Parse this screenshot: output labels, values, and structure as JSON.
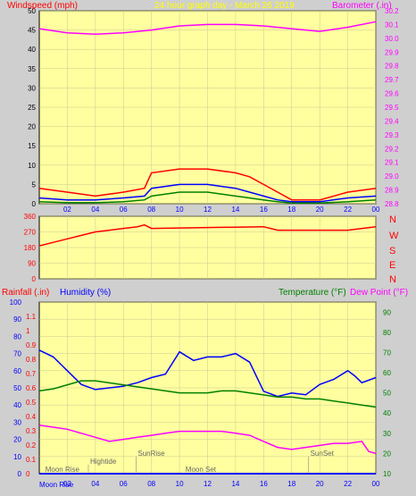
{
  "chart_data": [
    {
      "type": "line",
      "title": "24 hour graph day - March 26 2019",
      "left_axis_label": "Windspeed (mph)",
      "right_axis_label": "Barometer (.in)",
      "x_ticks": [
        "02",
        "04",
        "06",
        "08",
        "10",
        "12",
        "14",
        "16",
        "18",
        "20",
        "22",
        "00"
      ],
      "left_ylim": [
        0,
        50
      ],
      "left_ticks": [
        "0",
        "5",
        "10",
        "15",
        "20",
        "25",
        "30",
        "35",
        "40",
        "45",
        "50"
      ],
      "right_ylim": [
        28.8,
        30.2
      ],
      "right_ticks": [
        "28.8",
        "28.9",
        "29.0",
        "29.1",
        "29.2",
        "29.3",
        "29.4",
        "29.5",
        "29.6",
        "29.7",
        "29.8",
        "29.9",
        "30.0",
        "30.1",
        "30.2"
      ],
      "series": [
        {
          "color": "#ff00ff",
          "axis": "right",
          "x": [
            0,
            2,
            4,
            6,
            8,
            10,
            12,
            14,
            16,
            18,
            20,
            22,
            24
          ],
          "values": [
            30.07,
            30.04,
            30.03,
            30.04,
            30.06,
            30.09,
            30.1,
            30.1,
            30.09,
            30.07,
            30.05,
            30.08,
            30.12
          ]
        },
        {
          "color": "#ff0000",
          "axis": "left",
          "x": [
            0,
            2,
            4,
            6,
            7.5,
            8,
            10,
            12,
            14,
            15,
            16,
            17,
            18,
            20,
            22,
            24
          ],
          "values": [
            4,
            3,
            2,
            3,
            4,
            8,
            9,
            9,
            8,
            7,
            5,
            3,
            1,
            1,
            3,
            4
          ]
        },
        {
          "color": "#0000ff",
          "axis": "left",
          "x": [
            0,
            2,
            4,
            6,
            7.5,
            8,
            10,
            12,
            14,
            15,
            16,
            17,
            18,
            20,
            22,
            24
          ],
          "values": [
            1.5,
            1,
            1,
            1.5,
            2,
            4,
            5,
            5,
            4,
            3,
            2,
            1,
            0.5,
            0.5,
            1.5,
            2
          ]
        },
        {
          "color": "#008000",
          "axis": "left",
          "x": [
            0,
            2,
            4,
            6,
            7.5,
            8,
            10,
            12,
            14,
            15,
            16,
            17,
            18,
            20,
            22,
            24
          ],
          "values": [
            0.5,
            0.3,
            0.3,
            0.5,
            1,
            2,
            3,
            3,
            2,
            1.5,
            1,
            0.5,
            0.2,
            0.2,
            0.5,
            1
          ]
        }
      ]
    },
    {
      "type": "line",
      "directions": [
        "N",
        "W",
        "S",
        "E",
        "N"
      ],
      "ylim": [
        0,
        360
      ],
      "y_ticks": [
        "0",
        "90",
        "180",
        "270",
        "360"
      ],
      "x_ticks": [
        "02",
        "04",
        "06",
        "08",
        "10",
        "12",
        "14",
        "16",
        "18",
        "20",
        "22",
        "00"
      ],
      "series": [
        {
          "color": "#ff0000",
          "x": [
            0,
            1,
            2,
            3,
            4,
            5,
            6,
            7,
            7.5,
            8,
            16,
            16.5,
            17,
            22,
            24
          ],
          "values": [
            190,
            210,
            230,
            250,
            270,
            280,
            290,
            300,
            310,
            290,
            300,
            290,
            280,
            280,
            300
          ]
        }
      ]
    },
    {
      "type": "line",
      "left_label_1": "Rainfall (.in)",
      "left_label_2": "Humidity (%)",
      "right_label_1": "Temperature (°F)",
      "right_label_2": "Dew Point (°F)",
      "x_ticks": [
        "02",
        "04",
        "06",
        "08",
        "10",
        "12",
        "14",
        "16",
        "18",
        "20",
        "22",
        "00"
      ],
      "humidity_ylim": [
        0,
        100
      ],
      "humidity_ticks": [
        "0",
        "10",
        "20",
        "30",
        "40",
        "50",
        "60",
        "70",
        "80",
        "90",
        "100"
      ],
      "rain_ylim": [
        0,
        1.2
      ],
      "rain_ticks": [
        "0",
        "0.1",
        "0.2",
        "0.3",
        "0.4",
        "0.5",
        "0.6",
        "0.7",
        "0.8",
        "0.9",
        "1",
        "1.1"
      ],
      "temp_ylim": [
        10,
        95
      ],
      "temp_ticks": [
        "10",
        "20",
        "30",
        "40",
        "50",
        "60",
        "70",
        "80",
        "90"
      ],
      "events": [
        {
          "label": "Moon Rise",
          "x": 0.3,
          "row": 0
        },
        {
          "label": "Hightide",
          "x": 3.5,
          "row": 1
        },
        {
          "label": "SunRise",
          "x": 6.9,
          "row": 2
        },
        {
          "label": "Moon Set",
          "x": 10.3,
          "row": 0
        },
        {
          "label": "SunSet",
          "x": 19.2,
          "row": 2
        }
      ],
      "bottom_label": "Moon Rise",
      "series": [
        {
          "color": "#0000ff",
          "axis": "humidity",
          "x": [
            0,
            1,
            2,
            3,
            4,
            5,
            6,
            7,
            8,
            9,
            10,
            11,
            12,
            13,
            14,
            15,
            16,
            17,
            18,
            19,
            20,
            21,
            22,
            22.5,
            23,
            24
          ],
          "values": [
            72,
            68,
            60,
            52,
            49,
            50,
            51,
            53,
            56,
            58,
            71,
            66,
            68,
            68,
            70,
            65,
            48,
            45,
            47,
            46,
            52,
            55,
            60,
            57,
            53,
            56
          ]
        },
        {
          "color": "#008000",
          "axis": "temp",
          "x": [
            0,
            1,
            2,
            3,
            4,
            5,
            6,
            7,
            8,
            9,
            10,
            11,
            12,
            13,
            14,
            15,
            16,
            17,
            18,
            19,
            20,
            21,
            22,
            23,
            24
          ],
          "values": [
            51,
            52,
            54,
            56,
            56,
            55,
            54,
            53,
            52,
            51,
            50,
            50,
            50,
            51,
            51,
            50,
            49,
            48,
            48,
            47,
            47,
            46,
            45,
            44,
            43
          ]
        },
        {
          "color": "#ff00ff",
          "axis": "temp",
          "x": [
            0,
            1,
            2,
            3,
            4,
            5,
            6,
            7,
            8,
            9,
            10,
            11,
            12,
            13,
            14,
            15,
            16,
            17,
            18,
            19,
            20,
            21,
            22,
            23,
            23.5,
            24
          ],
          "values": [
            34,
            33,
            32,
            30,
            28,
            26,
            27,
            28,
            29,
            30,
            31,
            31,
            31,
            31,
            30,
            29,
            26,
            23,
            22,
            23,
            24,
            25,
            25,
            26,
            21,
            20
          ]
        },
        {
          "color": "#0000ff",
          "axis": "rain",
          "x": [
            0,
            24
          ],
          "values": [
            0,
            0
          ]
        }
      ]
    }
  ]
}
